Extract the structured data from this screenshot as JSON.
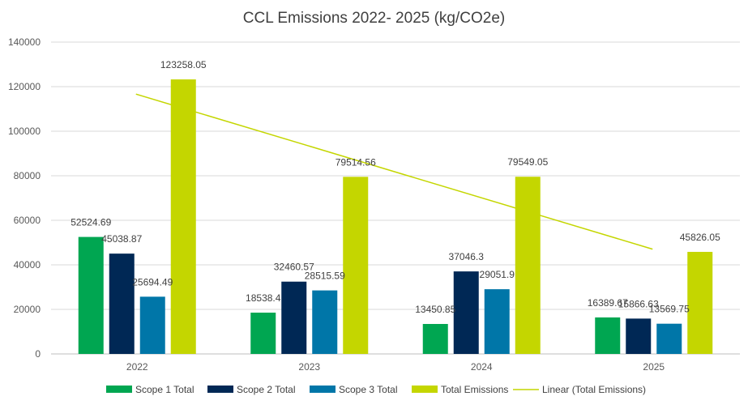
{
  "chart_data": {
    "type": "bar",
    "title": "CCL Emissions 2022- 2025 (kg/CO2e)",
    "xlabel": "",
    "ylabel": "",
    "categories": [
      "2022",
      "2023",
      "2024",
      "2025"
    ],
    "ylim": [
      0,
      140000
    ],
    "yticks": [
      0,
      20000,
      40000,
      60000,
      80000,
      100000,
      120000,
      140000
    ],
    "grid": true,
    "legend_position": "bottom",
    "series": [
      {
        "name": "Scope 1 Total",
        "color": "#00A651",
        "values": [
          52524.69,
          18538.4,
          13450.85,
          16389.67
        ],
        "labels": [
          "52524.69",
          "18538.4",
          "13450.85",
          "16389.67"
        ]
      },
      {
        "name": "Scope 2 Total",
        "color": "#002855",
        "values": [
          45038.87,
          32460.57,
          37046.3,
          15866.63
        ],
        "labels": [
          "45038.87",
          "32460.57",
          "37046.3",
          "15866.63"
        ]
      },
      {
        "name": "Scope 3 Total",
        "color": "#0076A8",
        "values": [
          25694.49,
          28515.59,
          29051.9,
          13569.75
        ],
        "labels": [
          "25694.49",
          "28515.59",
          "29051.9",
          "13569.75"
        ]
      },
      {
        "name": "Total Emissions",
        "color": "#C4D600",
        "values": [
          123258.05,
          79514.56,
          79549.05,
          45826.05
        ],
        "labels": [
          "123258.05",
          "79514.56",
          "79549.05",
          "45826.05"
        ]
      }
    ],
    "trendline": {
      "name": "Linear (Total Emissions)",
      "color": "#C4D600",
      "start_value": 116660,
      "end_value": 47050
    }
  }
}
